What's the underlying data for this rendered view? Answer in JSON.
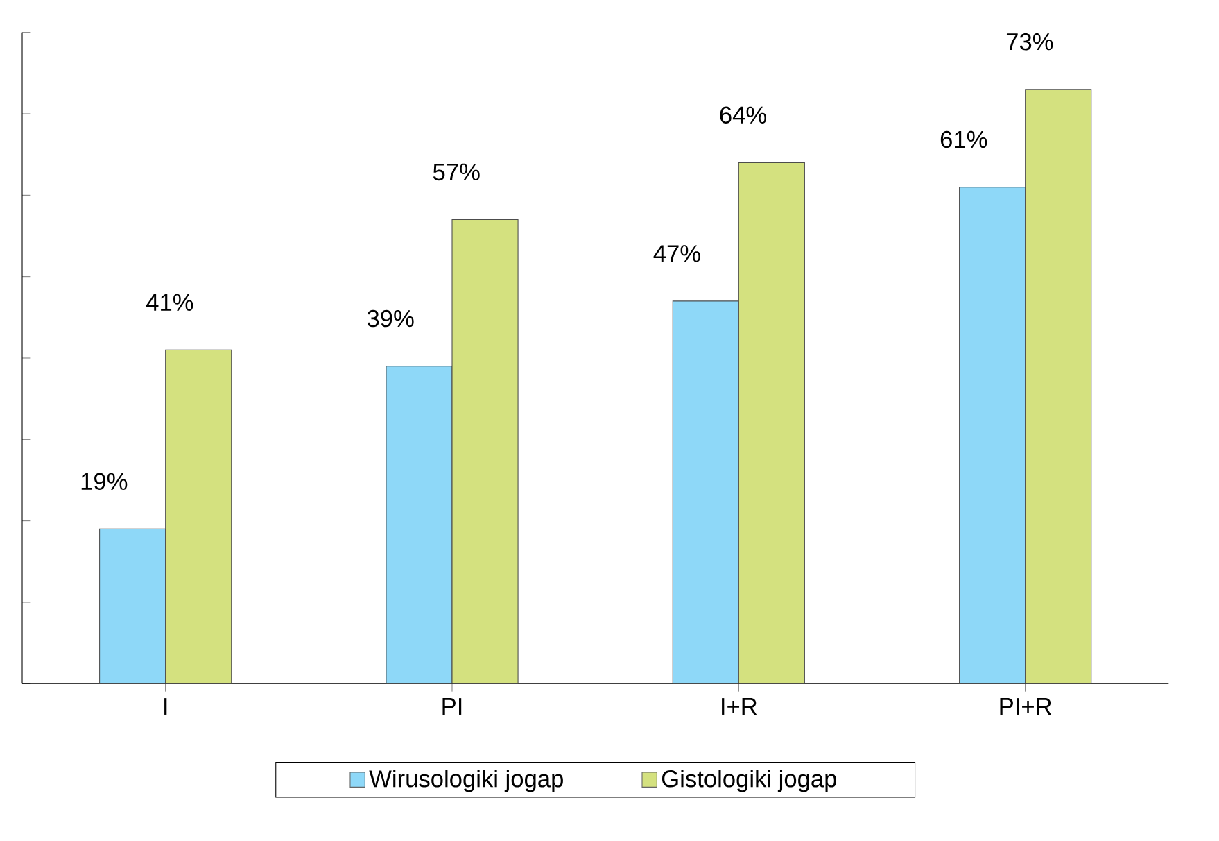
{
  "chart_data": {
    "type": "bar",
    "categories": [
      "I",
      "PI",
      "I+R",
      "PI+R"
    ],
    "series": [
      {
        "name": "Wirusologiki jogap",
        "color": "#8ed8f8",
        "values": [
          19,
          39,
          47,
          61
        ],
        "value_labels": [
          "19%",
          "39%",
          "47%",
          "61%"
        ]
      },
      {
        "name": "Gistologiki jogap",
        "color": "#d4e17f",
        "values": [
          41,
          57,
          64,
          73
        ],
        "value_labels": [
          "41%",
          "57%",
          "64%",
          "73%"
        ]
      }
    ],
    "ylim": [
      0,
      80
    ],
    "yticks": [
      {
        "value": 0,
        "label": null
      },
      {
        "value": 10,
        "label": null
      },
      {
        "value": 20,
        "label": null
      },
      {
        "value": 30,
        "label": null
      },
      {
        "value": 40,
        "label": null
      },
      {
        "value": 50,
        "label": null
      },
      {
        "value": 60,
        "label": null
      },
      {
        "value": 70,
        "label": null
      },
      {
        "value": 80,
        "label": null
      }
    ],
    "tick_labels": "x",
    "grid": false,
    "legend": "bottom"
  }
}
